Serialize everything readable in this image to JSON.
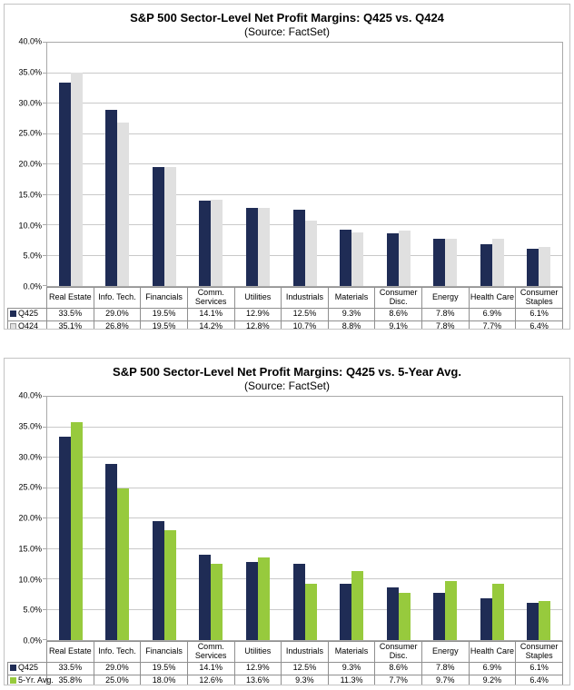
{
  "chart_data": [
    {
      "type": "bar",
      "title": "S&P 500 Sector-Level Net Profit Margins: Q425 vs. Q424",
      "subtitle": "(Source: FactSet)",
      "categories": [
        "Real Estate",
        "Info. Tech.",
        "Financials",
        "Comm. Services",
        "Utilities",
        "Industrials",
        "Materials",
        "Consumer Disc.",
        "Energy",
        "Health Care",
        "Consumer Staples"
      ],
      "series": [
        {
          "name": "Q425",
          "color": "#1f2c55",
          "values": [
            33.5,
            29.0,
            19.5,
            14.1,
            12.9,
            12.5,
            9.3,
            8.6,
            7.8,
            6.9,
            6.1
          ]
        },
        {
          "name": "Q424",
          "color": "#e0e0e0",
          "swatch_border": "#9a9a9a",
          "values": [
            35.1,
            26.8,
            19.5,
            14.2,
            12.8,
            10.7,
            8.8,
            9.1,
            7.8,
            7.7,
            6.4
          ]
        }
      ],
      "ylim": [
        0,
        40
      ],
      "ytick_step": 5,
      "ytick_labels": [
        "0.0%",
        "5.0%",
        "10.0%",
        "15.0%",
        "20.0%",
        "25.0%",
        "30.0%",
        "35.0%",
        "40.0%"
      ],
      "value_suffix": "%",
      "grid": true,
      "legend_position": "table-rows-left"
    },
    {
      "type": "bar",
      "title": "S&P 500 Sector-Level Net Profit Margins: Q425 vs. 5-Year Avg.",
      "subtitle": "(Source: FactSet)",
      "categories": [
        "Real Estate",
        "Info. Tech.",
        "Financials",
        "Comm. Services",
        "Utilities",
        "Industrials",
        "Materials",
        "Consumer Disc.",
        "Energy",
        "Health Care",
        "Consumer Staples"
      ],
      "series": [
        {
          "name": "Q425",
          "color": "#1f2c55",
          "values": [
            33.5,
            29.0,
            19.5,
            14.1,
            12.9,
            12.5,
            9.3,
            8.6,
            7.8,
            6.9,
            6.1
          ]
        },
        {
          "name": "5-Yr. Avg.",
          "color": "#97ca3d",
          "values": [
            35.8,
            25.0,
            18.0,
            12.6,
            13.6,
            9.3,
            11.3,
            7.7,
            9.7,
            9.2,
            6.4
          ]
        }
      ],
      "ylim": [
        0,
        40
      ],
      "ytick_step": 5,
      "ytick_labels": [
        "0.0%",
        "5.0%",
        "10.0%",
        "15.0%",
        "20.0%",
        "25.0%",
        "30.0%",
        "35.0%",
        "40.0%"
      ],
      "value_suffix": "%",
      "grid": true,
      "legend_position": "table-rows-left"
    }
  ],
  "colors": {
    "q425_navy": "#1f2c55",
    "q424_gray": "#e0e0e0",
    "five_yr_green": "#97ca3d",
    "gridline": "#c9c9c9",
    "plot_border": "#a9a9a9",
    "table_border": "#8f8f8f",
    "chart_frame": "#c3c3c3"
  }
}
